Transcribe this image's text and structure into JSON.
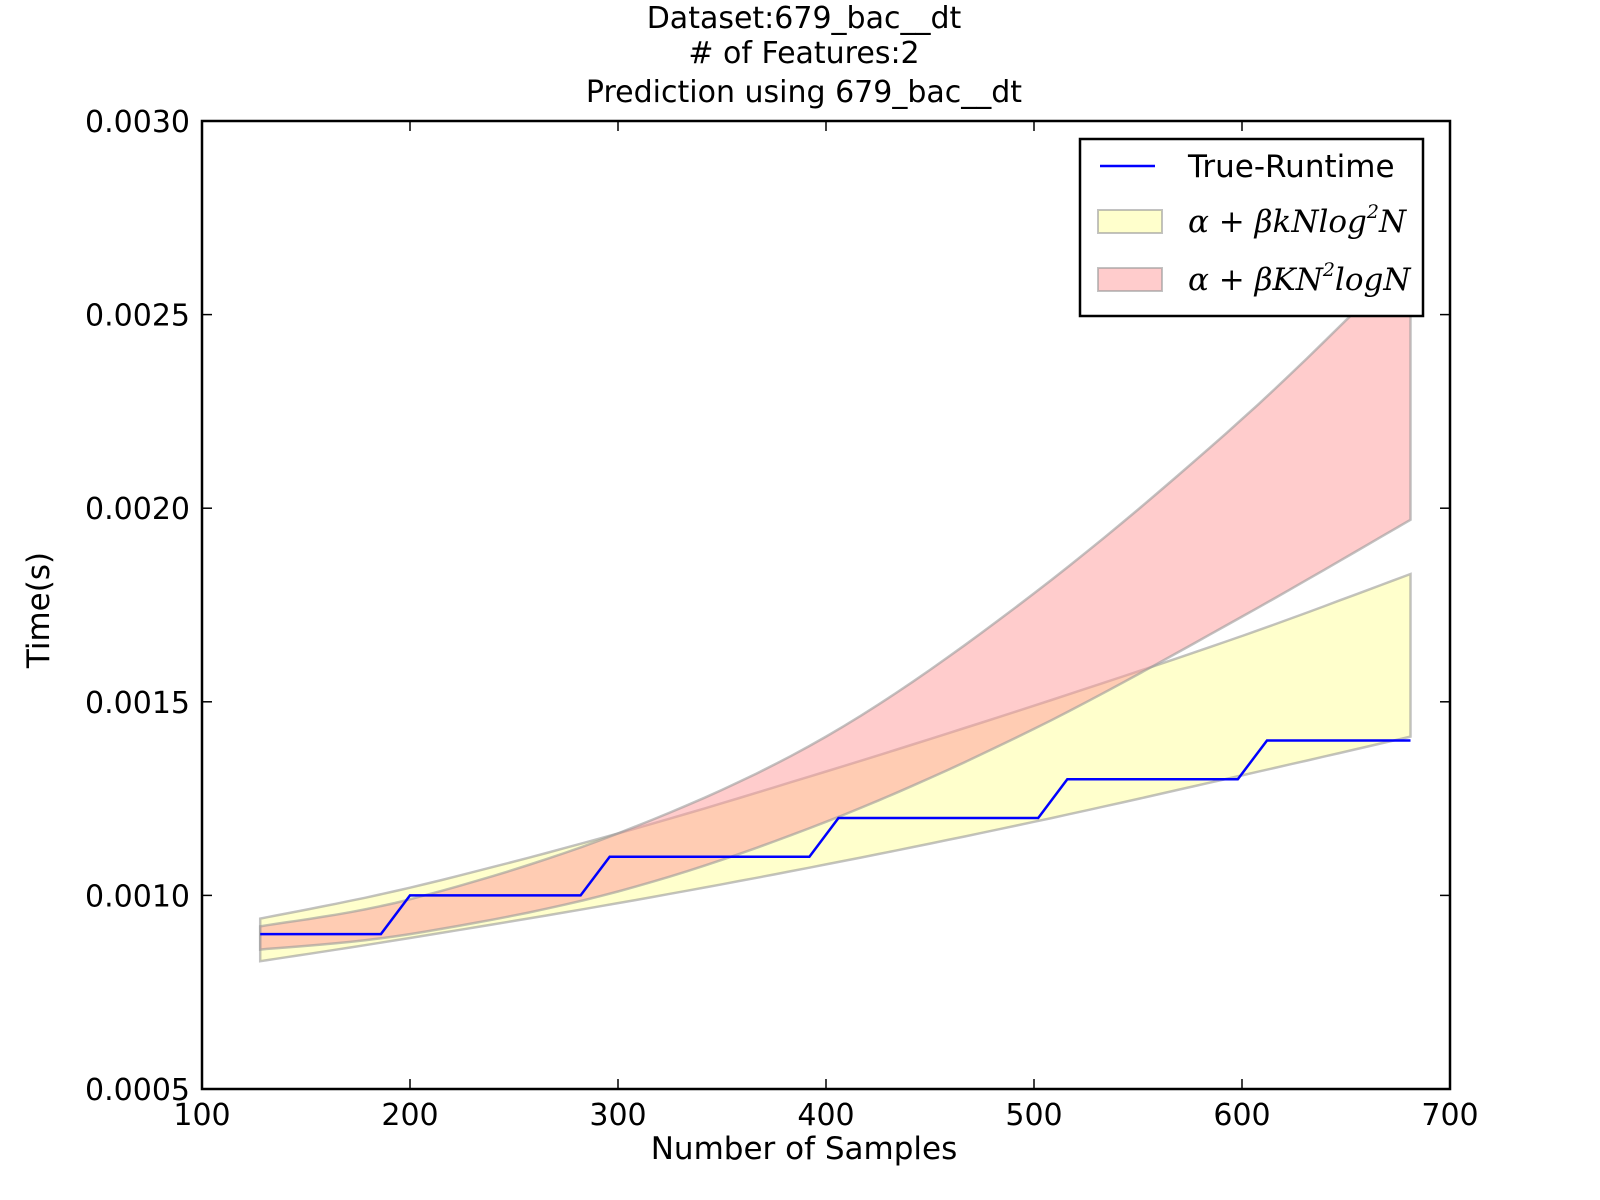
{
  "chart_data": {
    "type": "line",
    "title": [
      "Dataset:679_bac__dt",
      "# of Features:2",
      "Prediction using 679_bac__dt"
    ],
    "xlabel": "Number of Samples",
    "ylabel": "Time(s)",
    "xlim": [
      100,
      700
    ],
    "ylim": [
      0.0005,
      0.003
    ],
    "xticks": [
      "100",
      "200",
      "300",
      "400",
      "500",
      "600",
      "700"
    ],
    "yticks": [
      "0.0005",
      "0.0010",
      "0.0015",
      "0.0020",
      "0.0025",
      "0.0030"
    ],
    "grid": false,
    "legend_placement": "top-right",
    "series": [
      {
        "name": "True-Runtime",
        "kind": "line",
        "color": "#0000ff",
        "x": [
          128,
          186,
          200,
          282,
          296,
          392,
          406,
          502,
          516,
          598,
          612,
          681
        ],
        "y": [
          0.0009,
          0.0009,
          0.001,
          0.001,
          0.0011,
          0.0011,
          0.0012,
          0.0012,
          0.0013,
          0.0013,
          0.0014,
          0.0014
        ]
      },
      {
        "name_prefix": "α + βkNlog",
        "name_sup": "2",
        "name_suffix": "N",
        "kind": "band",
        "color": "#ffff99",
        "x": [
          128,
          200,
          300,
          400,
          500,
          600,
          681
        ],
        "lower": [
          0.00083,
          0.00089,
          0.00098,
          0.00108,
          0.00119,
          0.00131,
          0.00141
        ],
        "upper": [
          0.00094,
          0.00102,
          0.00116,
          0.00132,
          0.00149,
          0.00167,
          0.00183
        ]
      },
      {
        "name_prefix": "α + βKN",
        "name_sup": "2",
        "name_suffix": "logN",
        "kind": "band",
        "color": "#ff9999",
        "x": [
          128,
          200,
          300,
          400,
          500,
          600,
          681
        ],
        "lower": [
          0.00086,
          0.0009,
          0.00101,
          0.00119,
          0.00143,
          0.00172,
          0.00197
        ],
        "upper": [
          0.00092,
          0.00099,
          0.00116,
          0.00141,
          0.00178,
          0.00223,
          0.00265
        ]
      }
    ]
  }
}
